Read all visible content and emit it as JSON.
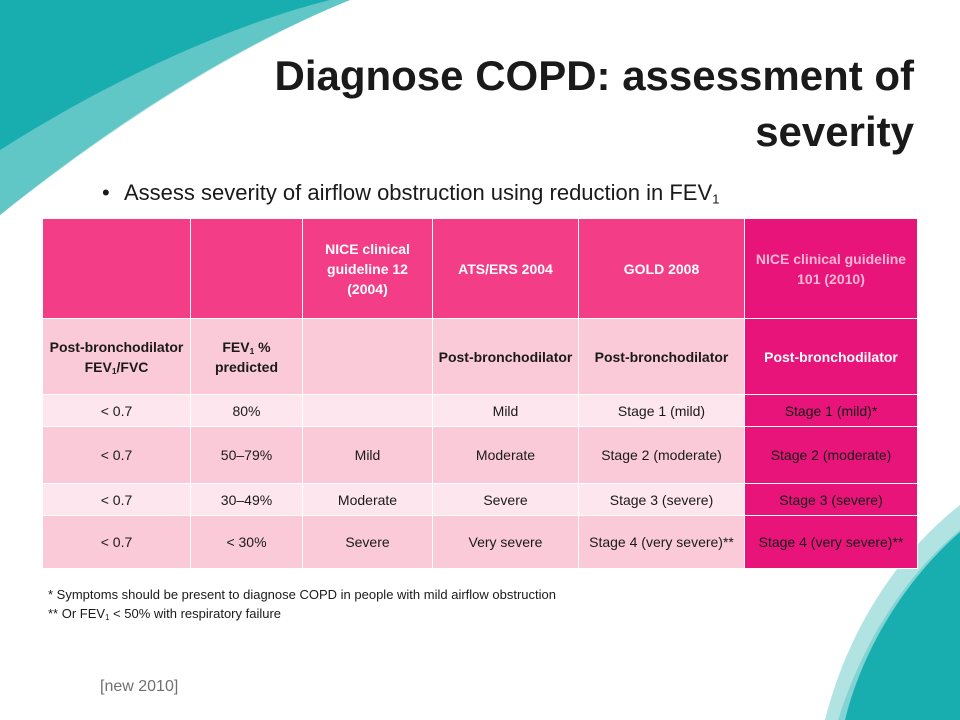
{
  "title": "Diagnose COPD: assessment of severity",
  "bullet": {
    "text": "Assess severity of airflow obstruction using reduction in FEV",
    "sub": "1"
  },
  "table": {
    "headers": [
      "",
      "",
      "NICE clinical guideline 12 (2004)",
      "ATS/ERS 2004",
      "GOLD 2008",
      "NICE clinical guideline 101 (2010)"
    ],
    "subheaders": {
      "col1_pre": "Post-bronchodilator FEV",
      "col1_sub": "1",
      "col1_post": "/FVC",
      "col2_pre": "FEV",
      "col2_sub": "1",
      "col2_post": " % predicted",
      "col3": "",
      "col4": "Post-bronchodilator",
      "col5": "Post-bronchodilator",
      "col6": "Post-bronchodilator"
    },
    "rows": [
      [
        "< 0.7",
        "80%",
        "",
        "Mild",
        "Stage 1 (mild)",
        "Stage 1 (mild)*"
      ],
      [
        "< 0.7",
        "50–79%",
        "Mild",
        "Moderate",
        "Stage 2 (moderate)",
        "Stage 2 (moderate)"
      ],
      [
        "< 0.7",
        "30–49%",
        "Moderate",
        "Severe",
        "Stage 3 (severe)",
        "Stage 3 (severe)"
      ],
      [
        "< 0.7",
        "< 30%",
        "Severe",
        "Very severe",
        "Stage 4 (very severe)**",
        "Stage 4 (very severe)**"
      ]
    ]
  },
  "footnotes": {
    "note1": "* Symptoms should be present to diagnose COPD in people with mild airflow obstruction",
    "note2_pre": "** Or FEV",
    "note2_sub": "1",
    "note2_post": " < 50% with respiratory failure"
  },
  "footer": "[new 2010]",
  "colors": {
    "accent_pink": "#f33d87",
    "accent_magenta": "#e8147a",
    "light_pink": "#fbcad9",
    "teal": "#1fb3b0"
  }
}
